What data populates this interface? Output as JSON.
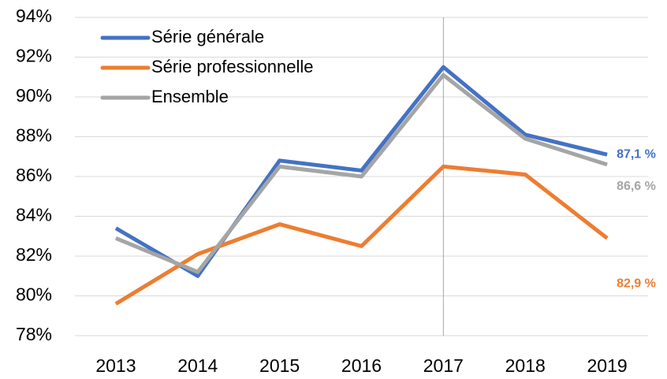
{
  "chart_data": {
    "type": "line",
    "categories": [
      "2013",
      "2014",
      "2015",
      "2016",
      "2017",
      "2018",
      "2019"
    ],
    "series": [
      {
        "name": "Série générale",
        "color": "#4472c4",
        "values": [
          83.4,
          81.0,
          86.8,
          86.3,
          91.5,
          88.1,
          87.1
        ],
        "value_labels": [
          null,
          null,
          null,
          null,
          null,
          null,
          "87,1 %"
        ]
      },
      {
        "name": "Série professionnelle",
        "color": "#ed7d31",
        "values": [
          79.6,
          82.1,
          83.6,
          82.5,
          86.5,
          86.1,
          82.9
        ],
        "value_labels": [
          null,
          null,
          null,
          null,
          null,
          null,
          "82,9 %"
        ]
      },
      {
        "name": "Ensemble",
        "color": "#a5a5a5",
        "values": [
          82.9,
          81.2,
          86.5,
          86.0,
          91.1,
          87.9,
          86.6
        ],
        "value_labels": [
          null,
          null,
          null,
          null,
          null,
          null,
          "86,6 %"
        ]
      }
    ],
    "ylim": [
      78,
      94
    ],
    "yticks": [
      {
        "value": 78,
        "label": "78%"
      },
      {
        "value": 80,
        "label": "80%"
      },
      {
        "value": 82,
        "label": "82%"
      },
      {
        "value": 84,
        "label": "84%"
      },
      {
        "value": 86,
        "label": "86%"
      },
      {
        "value": 88,
        "label": "88%"
      },
      {
        "value": 90,
        "label": "90%"
      },
      {
        "value": 92,
        "label": "92%"
      },
      {
        "value": 94,
        "label": "94%"
      }
    ],
    "grid": true,
    "legend": "top-left",
    "vline_category": "2017"
  }
}
